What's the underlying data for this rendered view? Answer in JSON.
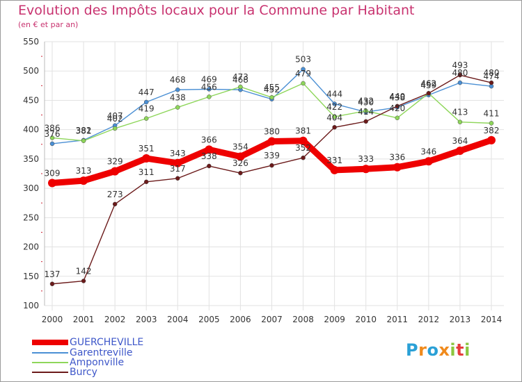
{
  "title": "Evolution des Impôts locaux pour la Commune par Habitant",
  "subtitle": "(en € et par an)",
  "logo": {
    "letters": [
      "P",
      "r",
      "o",
      "x",
      "i",
      "t",
      "i"
    ],
    "colors": [
      "#2aa0d6",
      "#f08a1c",
      "#2aa0d6",
      "#f08a1c",
      "#8cc63f",
      "#e63c3c",
      "#8cc63f"
    ]
  },
  "chart_data": {
    "type": "line",
    "x": [
      "2000",
      "2001",
      "2002",
      "2003",
      "2004",
      "2005",
      "2006",
      "2007",
      "2008",
      "2009",
      "2010",
      "2011",
      "2012",
      "2013",
      "2014"
    ],
    "ylim": [
      100,
      550
    ],
    "yticks": [
      "100",
      "150",
      "200",
      "250",
      "300",
      "350",
      "400",
      "450",
      "500",
      "550"
    ],
    "grid": true,
    "legend_position": "bottom-left",
    "series": [
      {
        "name": "Garentreville",
        "color": "#4a8fd4",
        "values": [
          376,
          382,
          407,
          447,
          468,
          469,
          468,
          452,
          503,
          444,
          430,
          438,
          459,
          480,
          474
        ],
        "labels": [
          "376",
          "382",
          "407",
          "447",
          "468",
          "469",
          "468",
          "452",
          "503",
          "444",
          "430",
          "438",
          "459",
          "480",
          "474"
        ]
      },
      {
        "name": "Amponville",
        "color": "#8ed65a",
        "values": [
          386,
          381,
          402,
          419,
          438,
          456,
          473,
          455,
          479,
          422,
          432,
          420,
          462,
          413,
          411
        ],
        "labels": [
          "386",
          "381",
          "402",
          "419",
          "438",
          "456",
          "473",
          "455",
          "479",
          "422",
          "432",
          "420",
          "462",
          "413",
          "411"
        ]
      },
      {
        "name": "Burcy",
        "color": "#6b1a1a",
        "values": [
          137,
          142,
          273,
          311,
          317,
          338,
          326,
          339,
          352,
          404,
          414,
          440,
          462,
          493,
          480
        ],
        "labels": [
          "137",
          "142",
          "273",
          "311",
          "317",
          "338",
          "326",
          "339",
          "352",
          "404",
          "414",
          "440",
          "462",
          "493",
          "480"
        ]
      },
      {
        "name": "GUERCHEVILLE",
        "color": "#ee0000",
        "values": [
          309,
          313,
          329,
          351,
          343,
          366,
          354,
          380,
          381,
          331,
          333,
          336,
          346,
          364,
          382
        ],
        "labels": [
          "309",
          "313",
          "329",
          "351",
          "343",
          "366",
          "354",
          "380",
          "381",
          "331",
          "333",
          "336",
          "346",
          "364",
          "382"
        ]
      }
    ]
  },
  "legend": [
    {
      "name": "GUERCHEVILLE",
      "color": "#ee0000"
    },
    {
      "name": "Garentreville",
      "color": "#4a8fd4"
    },
    {
      "name": "Amponville",
      "color": "#8ed65a"
    },
    {
      "name": "Burcy",
      "color": "#6b1a1a"
    }
  ]
}
